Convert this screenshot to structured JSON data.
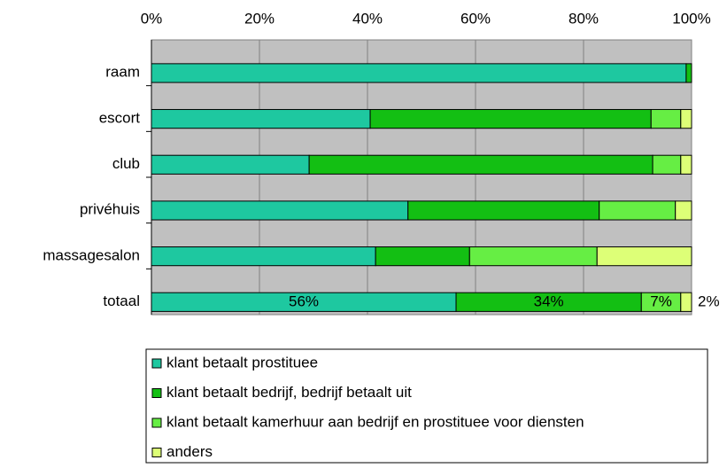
{
  "chart_data": {
    "type": "stacked-barh",
    "categories": [
      "raam",
      "escort",
      "club",
      "privéhuis",
      "massagesalon",
      "totaal"
    ],
    "series": [
      {
        "name": "klant betaalt prostituee",
        "color": "#1ec8a0",
        "values": [
          99.0,
          40.5,
          29.2,
          47.5,
          41.5,
          56.4
        ],
        "value_labels": [
          null,
          null,
          null,
          null,
          null,
          "56%"
        ]
      },
      {
        "name": "klant betaalt bedrijf, bedrijf betaalt uit",
        "color": "#13bf13",
        "values": [
          1.0,
          52.0,
          63.6,
          35.4,
          17.4,
          34.3
        ],
        "value_labels": [
          null,
          null,
          null,
          null,
          null,
          "34%"
        ]
      },
      {
        "name": "klant betaalt kamerhuur aan bedrijf en prostituee voor diensten",
        "color": "#66ee44",
        "values": [
          0,
          5.5,
          5.2,
          14.1,
          23.6,
          7.3
        ],
        "value_labels": [
          null,
          null,
          null,
          null,
          null,
          "7%"
        ]
      },
      {
        "name": "anders",
        "color": "#ddff77",
        "values": [
          0,
          2.0,
          2.0,
          3.0,
          17.5,
          2.0
        ],
        "value_labels": [
          null,
          null,
          null,
          null,
          null,
          "2%"
        ]
      }
    ],
    "xlim": [
      0,
      100
    ],
    "xticks": [
      {
        "value": 0,
        "label": "0%"
      },
      {
        "value": 20,
        "label": "20%"
      },
      {
        "value": 40,
        "label": "40%"
      },
      {
        "value": 60,
        "label": "60%"
      },
      {
        "value": 80,
        "label": "80%"
      },
      {
        "value": 100,
        "label": "100%"
      }
    ],
    "grid": true,
    "legend": "bottom"
  }
}
